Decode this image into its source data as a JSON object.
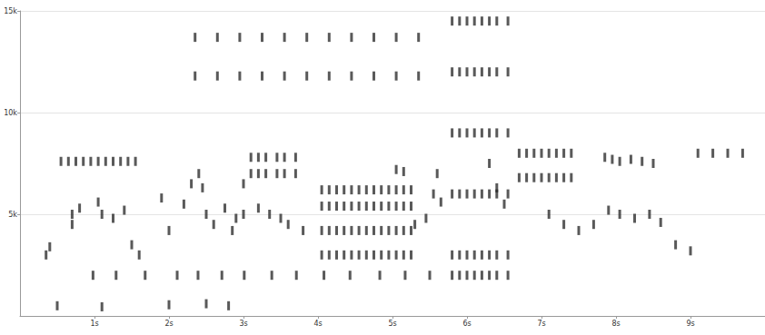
{
  "chart_data": {
    "type": "scatter",
    "marker": "rect",
    "color": "#222222",
    "grid": true,
    "xlim": [
      0,
      10
    ],
    "xticks": [
      {
        "value": 1,
        "label": "1s"
      },
      {
        "value": 2,
        "label": "2s"
      },
      {
        "value": 3,
        "label": "3s"
      },
      {
        "value": 4,
        "label": "4s"
      },
      {
        "value": 5,
        "label": "5s"
      },
      {
        "value": 6,
        "label": "6s"
      },
      {
        "value": 7,
        "label": "7s"
      },
      {
        "value": 8,
        "label": "8s"
      },
      {
        "value": 9,
        "label": "9s"
      }
    ],
    "ylim": [
      0,
      15000
    ],
    "yticks": [
      {
        "value": 5000,
        "label": "5k"
      },
      {
        "value": 10000,
        "label": "10k"
      },
      {
        "value": 15000,
        "label": "15k"
      }
    ],
    "x": [
      0.98,
      1.29,
      1.68,
      2.11,
      2.39,
      2.71,
      3.01,
      3.38,
      3.71,
      4.08,
      4.43,
      4.83,
      5.17,
      5.5,
      0.55,
      0.65,
      0.75,
      0.85,
      0.95,
      1.05,
      1.15,
      1.25,
      1.35,
      1.45,
      1.55,
      0.7,
      0.7,
      0.8,
      1.05,
      1.1,
      1.25,
      1.4,
      1.5,
      1.6,
      0.35,
      0.4,
      2.3,
      2.4,
      2.45,
      2.5,
      2.6,
      2.75,
      2.85,
      2.9,
      2.2,
      2.0,
      1.9,
      3.1,
      3.2,
      3.3,
      3.45,
      3.55,
      3.7,
      3.1,
      3.2,
      3.3,
      3.45,
      3.55,
      3.7,
      3.0,
      3.0,
      3.2,
      3.35,
      3.5,
      3.6,
      3.8,
      4.05,
      4.05,
      4.05,
      4.05,
      4.15,
      4.15,
      4.15,
      4.15,
      4.25,
      4.25,
      4.25,
      4.25,
      4.35,
      4.35,
      4.35,
      4.35,
      4.45,
      4.45,
      4.45,
      4.45,
      4.55,
      4.55,
      4.55,
      4.55,
      4.65,
      4.65,
      4.65,
      4.65,
      4.75,
      4.75,
      4.75,
      4.75,
      4.85,
      4.85,
      4.85,
      4.85,
      4.95,
      4.95,
      4.95,
      4.95,
      5.05,
      5.05,
      5.05,
      5.05,
      5.15,
      5.15,
      5.15,
      5.15,
      5.25,
      5.25,
      5.25,
      5.25,
      5.05,
      5.15,
      5.3,
      5.45,
      5.55,
      5.6,
      5.65,
      5.8,
      5.8,
      5.8,
      5.8,
      5.8,
      5.8,
      5.9,
      5.9,
      5.9,
      5.9,
      5.9,
      5.9,
      6.0,
      6.0,
      6.0,
      6.0,
      6.0,
      6.0,
      6.1,
      6.1,
      6.1,
      6.1,
      6.1,
      6.1,
      6.2,
      6.2,
      6.2,
      6.2,
      6.2,
      6.2,
      6.3,
      6.3,
      6.3,
      6.3,
      6.3,
      6.3,
      6.4,
      6.4,
      6.4,
      6.4,
      6.4,
      6.4,
      6.55,
      6.55,
      6.55,
      6.55,
      6.55,
      6.55,
      6.7,
      6.7,
      6.8,
      6.8,
      6.9,
      6.9,
      7.0,
      7.0,
      7.1,
      7.1,
      7.2,
      7.2,
      7.3,
      7.3,
      7.4,
      7.4,
      6.3,
      6.4,
      6.5,
      7.1,
      7.3,
      7.5,
      7.7,
      7.85,
      7.95,
      8.05,
      8.2,
      8.35,
      8.5,
      7.9,
      8.05,
      8.25,
      8.45,
      8.6,
      8.8,
      9.0,
      9.1,
      9.3,
      9.5,
      9.7,
      2.35,
      2.35,
      2.65,
      2.65,
      2.95,
      2.95,
      3.25,
      3.25,
      3.55,
      3.55,
      3.85,
      3.85,
      4.15,
      4.15,
      4.45,
      4.45,
      4.75,
      4.75,
      5.05,
      5.05,
      5.35,
      5.35,
      0.5,
      1.1,
      2.0,
      2.5,
      2.8
    ],
    "values": [
      2000,
      2000,
      2000,
      2000,
      2000,
      2000,
      2000,
      2000,
      2000,
      2000,
      2000,
      2000,
      2000,
      2000,
      7600,
      7600,
      7600,
      7600,
      7600,
      7600,
      7600,
      7600,
      7600,
      7600,
      7600,
      5000,
      4500,
      5300,
      5600,
      5000,
      4800,
      5200,
      3500,
      3000,
      3000,
      3400,
      6500,
      7000,
      6300,
      5000,
      4500,
      5300,
      4200,
      4800,
      5500,
      4200,
      5800,
      7800,
      7800,
      7800,
      7800,
      7800,
      7800,
      7000,
      7000,
      7000,
      7000,
      7000,
      7000,
      6500,
      5000,
      5300,
      5000,
      4800,
      4500,
      4200,
      3000,
      4200,
      5400,
      6200,
      3000,
      4200,
      5400,
      6200,
      3000,
      4200,
      5400,
      6200,
      3000,
      4200,
      5400,
      6200,
      3000,
      4200,
      5400,
      6200,
      3000,
      4200,
      5400,
      6200,
      3000,
      4200,
      5400,
      6200,
      3000,
      4200,
      5400,
      6200,
      3000,
      4200,
      5400,
      6200,
      3000,
      4200,
      5400,
      6200,
      3000,
      4200,
      5400,
      6200,
      3000,
      4200,
      5400,
      6200,
      3000,
      4200,
      5400,
      6200,
      7200,
      7100,
      4500,
      4800,
      6000,
      7000,
      5600,
      2000,
      3000,
      6000,
      9000,
      12000,
      14500,
      2000,
      3000,
      6000,
      9000,
      12000,
      14500,
      2000,
      3000,
      6000,
      9000,
      12000,
      14500,
      2000,
      3000,
      6000,
      9000,
      12000,
      14500,
      2000,
      3000,
      6000,
      9000,
      12000,
      14500,
      2000,
      3000,
      6000,
      9000,
      12000,
      14500,
      2000,
      3000,
      6000,
      9000,
      12000,
      14500,
      2000,
      3000,
      6000,
      9000,
      12000,
      14500,
      8000,
      6800,
      8000,
      6800,
      8000,
      6800,
      8000,
      6800,
      8000,
      6800,
      8000,
      6800,
      8000,
      6800,
      8000,
      6800,
      7500,
      6300,
      5500,
      5000,
      4500,
      4200,
      4500,
      7800,
      7700,
      7600,
      7700,
      7600,
      7500,
      5200,
      5000,
      4800,
      5000,
      4600,
      3500,
      3200,
      8000,
      8000,
      8000,
      8000,
      13700,
      11800,
      13700,
      11800,
      13700,
      11800,
      13700,
      11800,
      13700,
      11800,
      13700,
      11800,
      13700,
      11800,
      13700,
      11800,
      13700,
      11800,
      13700,
      11800,
      13700,
      11800,
      500,
      450,
      550,
      600,
      500
    ]
  }
}
